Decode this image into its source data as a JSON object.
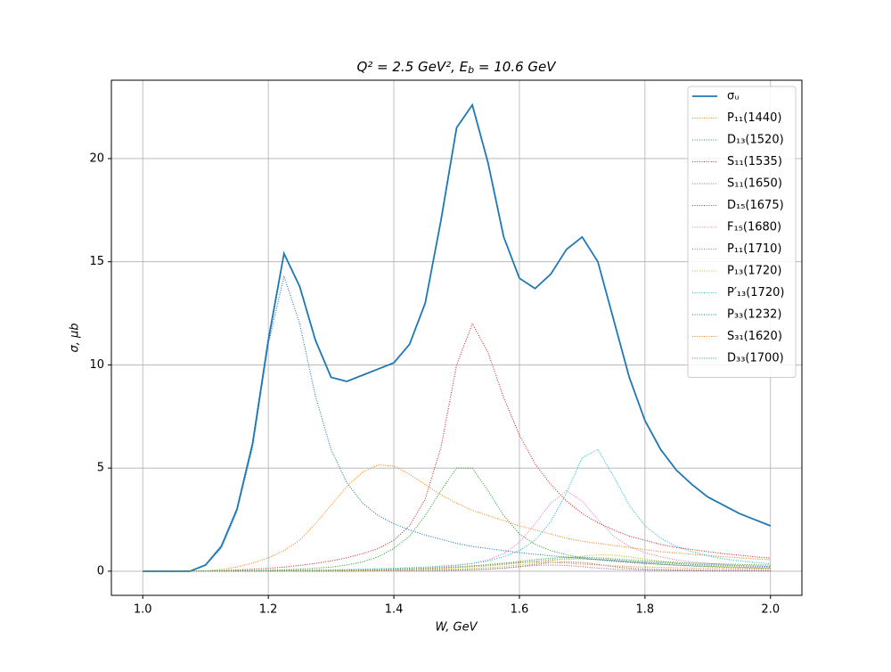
{
  "chart_data": {
    "type": "line",
    "title": [
      "Q² = 2.5 GeV²,  E",
      "b",
      " = 10.6 GeV"
    ],
    "x_label": "W, GeV",
    "y_label": "σ, μb",
    "xlim": [
      0.95,
      2.05
    ],
    "ylim": [
      -1.17,
      23.8
    ],
    "xticks": [
      {
        "value": 1,
        "label": "1.0"
      },
      {
        "value": 1.2,
        "label": "1.2"
      },
      {
        "value": 1.4,
        "label": "1.4"
      },
      {
        "value": 1.6,
        "label": "1.6"
      },
      {
        "value": 1.8,
        "label": "1.8"
      },
      {
        "value": 2,
        "label": "2.0"
      }
    ],
    "yticks": [
      0,
      5,
      10,
      15,
      20
    ],
    "grid": true,
    "legend": "upper right",
    "x": [
      1,
      1.025,
      1.05,
      1.075,
      1.1,
      1.125,
      1.15,
      1.175,
      1.2,
      1.225,
      1.25,
      1.275,
      1.3,
      1.325,
      1.35,
      1.375,
      1.4,
      1.425,
      1.45,
      1.475,
      1.5,
      1.525,
      1.55,
      1.575,
      1.6,
      1.625,
      1.65,
      1.675,
      1.7,
      1.725,
      1.75,
      1.775,
      1.8,
      1.825,
      1.85,
      1.875,
      1.9,
      1.925,
      1.95,
      1.975,
      2
    ],
    "series": [
      {
        "name": "σᵤ",
        "color": "#1f77b4",
        "style": "solid",
        "values": [
          0,
          0,
          0,
          0,
          0.3,
          1.2,
          3.0,
          6.2,
          11.2,
          15.4,
          13.8,
          11.2,
          9.4,
          9.2,
          9.5,
          9.8,
          10.1,
          11.0,
          13.0,
          17.0,
          21.5,
          22.6,
          19.8,
          16.2,
          14.2,
          13.7,
          14.4,
          15.6,
          16.2,
          15.0,
          12.2,
          9.4,
          7.3,
          5.9,
          4.9,
          4.2,
          3.6,
          3.2,
          2.8,
          2.5,
          2.2
        ]
      },
      {
        "name": "P₁₁(1440)",
        "color": "#ff7f0e",
        "style": "dotted",
        "values": [
          0,
          0,
          0,
          0,
          0.02,
          0.08,
          0.2,
          0.4,
          0.65,
          1.0,
          1.5,
          2.3,
          3.2,
          4.1,
          4.8,
          5.15,
          5.1,
          4.7,
          4.2,
          3.7,
          3.3,
          2.95,
          2.7,
          2.45,
          2.2,
          2.0,
          1.8,
          1.6,
          1.45,
          1.35,
          1.25,
          1.15,
          1.05,
          0.95,
          0.88,
          0.82,
          0.76,
          0.7,
          0.65,
          0.6,
          0.56
        ]
      },
      {
        "name": "D₁₃(1520)",
        "color": "#2ca02c",
        "style": "dotted",
        "values": [
          0,
          0,
          0,
          0,
          0,
          0.01,
          0.02,
          0.03,
          0.05,
          0.07,
          0.1,
          0.14,
          0.2,
          0.3,
          0.45,
          0.7,
          1.1,
          1.7,
          2.7,
          3.9,
          5.0,
          5.0,
          3.9,
          2.7,
          1.8,
          1.3,
          1.0,
          0.8,
          0.65,
          0.55,
          0.48,
          0.42,
          0.37,
          0.33,
          0.3,
          0.27,
          0.24,
          0.22,
          0.2,
          0.18,
          0.17
        ]
      },
      {
        "name": "S₁₁(1535)",
        "color": "#d62728",
        "style": "dotted",
        "values": [
          0,
          0,
          0,
          0,
          0.01,
          0.03,
          0.06,
          0.1,
          0.14,
          0.2,
          0.28,
          0.38,
          0.5,
          0.65,
          0.85,
          1.1,
          1.5,
          2.2,
          3.5,
          6.0,
          10.0,
          12.0,
          10.6,
          8.4,
          6.6,
          5.2,
          4.2,
          3.4,
          2.8,
          2.35,
          2.0,
          1.7,
          1.5,
          1.3,
          1.15,
          1.05,
          0.95,
          0.85,
          0.78,
          0.7,
          0.64
        ]
      },
      {
        "name": "S₁₁(1650)",
        "color": "#9467bd",
        "style": "dotted",
        "values": [
          0,
          0,
          0,
          0,
          0.01,
          0.01,
          0.01,
          0.01,
          0.01,
          0.01,
          0.01,
          0.01,
          0.01,
          0.01,
          0.02,
          0.02,
          0.02,
          0.03,
          0.03,
          0.04,
          0.05,
          0.07,
          0.1,
          0.15,
          0.22,
          0.28,
          0.3,
          0.28,
          0.22,
          0.15,
          0.1,
          0.07,
          0.05,
          0.04,
          0.03,
          0.03,
          0.02,
          0.02,
          0.02,
          0.02,
          0.01
        ]
      },
      {
        "name": "D₁₅(1675)",
        "color": "#8c564b",
        "style": "dotted",
        "values": [
          0,
          0,
          0,
          0,
          0.01,
          0.01,
          0.01,
          0.01,
          0.01,
          0.01,
          0.01,
          0.01,
          0.01,
          0.01,
          0.01,
          0.02,
          0.03,
          0.03,
          0.04,
          0.05,
          0.06,
          0.08,
          0.1,
          0.15,
          0.22,
          0.33,
          0.42,
          0.45,
          0.42,
          0.33,
          0.22,
          0.15,
          0.1,
          0.08,
          0.06,
          0.05,
          0.04,
          0.03,
          0.03,
          0.02,
          0.02
        ]
      },
      {
        "name": "F₁₅(1680)",
        "color": "#e377c2",
        "style": "dotted",
        "values": [
          0,
          0,
          0,
          0,
          0,
          0,
          0,
          0.01,
          0.01,
          0.02,
          0.02,
          0.03,
          0.04,
          0.05,
          0.06,
          0.08,
          0.1,
          0.12,
          0.15,
          0.2,
          0.27,
          0.37,
          0.55,
          0.85,
          1.4,
          2.3,
          3.3,
          3.9,
          3.4,
          2.5,
          1.7,
          1.2,
          0.9,
          0.7,
          0.55,
          0.45,
          0.38,
          0.32,
          0.27,
          0.23,
          0.2
        ]
      },
      {
        "name": "P₁₁(1710)",
        "color": "#7f7f7f",
        "style": "dotted",
        "values": [
          0,
          0,
          0,
          0,
          0.01,
          0.01,
          0.01,
          0.02,
          0.02,
          0.02,
          0.03,
          0.03,
          0.04,
          0.05,
          0.06,
          0.07,
          0.08,
          0.1,
          0.12,
          0.15,
          0.18,
          0.22,
          0.27,
          0.33,
          0.4,
          0.48,
          0.55,
          0.59,
          0.6,
          0.58,
          0.53,
          0.46,
          0.4,
          0.34,
          0.29,
          0.25,
          0.22,
          0.19,
          0.17,
          0.15,
          0.13
        ]
      },
      {
        "name": "P₁₃(1720)",
        "color": "#bcbd22",
        "style": "dotted",
        "values": [
          0,
          0,
          0,
          0,
          0,
          0,
          0.01,
          0.01,
          0.01,
          0.01,
          0.02,
          0.02,
          0.02,
          0.03,
          0.03,
          0.04,
          0.05,
          0.06,
          0.07,
          0.09,
          0.11,
          0.14,
          0.18,
          0.23,
          0.3,
          0.39,
          0.5,
          0.62,
          0.73,
          0.79,
          0.78,
          0.7,
          0.59,
          0.48,
          0.39,
          0.32,
          0.27,
          0.23,
          0.2,
          0.17,
          0.15
        ]
      },
      {
        "name": "P′₁₃(1720)",
        "color": "#17becf",
        "style": "dotted",
        "values": [
          0,
          0,
          0,
          0,
          0,
          0,
          0.01,
          0.01,
          0.02,
          0.03,
          0.04,
          0.05,
          0.06,
          0.08,
          0.1,
          0.12,
          0.14,
          0.17,
          0.2,
          0.25,
          0.3,
          0.38,
          0.5,
          0.7,
          1.0,
          1.5,
          2.4,
          3.8,
          5.5,
          5.9,
          4.6,
          3.2,
          2.2,
          1.6,
          1.2,
          0.95,
          0.75,
          0.6,
          0.5,
          0.42,
          0.36
        ]
      },
      {
        "name": "P₃₃(1232)",
        "color": "#1f77b4",
        "style": "dotted",
        "values": [
          0,
          0,
          0,
          0,
          0.3,
          1.1,
          2.9,
          6.0,
          11.0,
          14.3,
          12.0,
          8.5,
          5.9,
          4.3,
          3.3,
          2.7,
          2.3,
          2.0,
          1.75,
          1.55,
          1.35,
          1.2,
          1.1,
          1.0,
          0.9,
          0.82,
          0.75,
          0.68,
          0.62,
          0.56,
          0.52,
          0.47,
          0.43,
          0.4,
          0.37,
          0.34,
          0.31,
          0.29,
          0.27,
          0.25,
          0.23
        ]
      },
      {
        "name": "S₃₁(1620)",
        "color": "#ff7f0e",
        "style": "dotted",
        "values": [
          0,
          0,
          0,
          0,
          0.01,
          0.01,
          0.01,
          0.01,
          0.02,
          0.02,
          0.02,
          0.03,
          0.03,
          0.04,
          0.05,
          0.06,
          0.07,
          0.09,
          0.11,
          0.14,
          0.18,
          0.23,
          0.3,
          0.37,
          0.43,
          0.45,
          0.43,
          0.39,
          0.34,
          0.3,
          0.26,
          0.23,
          0.2,
          0.18,
          0.16,
          0.14,
          0.13,
          0.12,
          0.11,
          0.1,
          0.09
        ]
      },
      {
        "name": "D₃₃(1700)",
        "color": "#2ca02c",
        "style": "dotted",
        "values": [
          0,
          0,
          0,
          0,
          0.01,
          0.01,
          0.01,
          0.02,
          0.02,
          0.03,
          0.03,
          0.04,
          0.05,
          0.06,
          0.07,
          0.08,
          0.1,
          0.12,
          0.14,
          0.17,
          0.21,
          0.26,
          0.32,
          0.39,
          0.47,
          0.56,
          0.63,
          0.68,
          0.68,
          0.65,
          0.6,
          0.55,
          0.5,
          0.46,
          0.43,
          0.4,
          0.37,
          0.35,
          0.33,
          0.31,
          0.29
        ]
      }
    ]
  }
}
